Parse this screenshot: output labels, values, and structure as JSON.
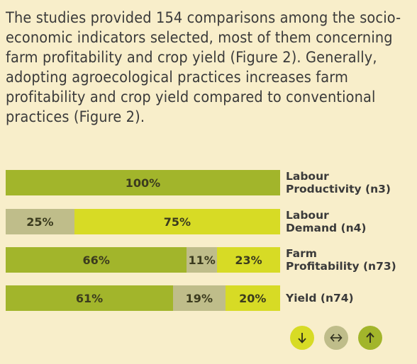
{
  "paragraph": "The studies provided 154 comparisons among the socio-economic indicators selected, most of them concerning farm profitability and crop yield (Figure 2). Generally, adopting agroecological practices increases farm profitability and crop yield compared to conventional practices (Figure 2).",
  "chart_data": {
    "type": "bar",
    "orientation": "horizontal",
    "stacked": true,
    "normalized_percent": true,
    "categories": [
      "Labour Productivity (n3)",
      "Labour Demand (n4)",
      "Farm Profitability (n73)",
      "Yield (n74)"
    ],
    "category_labels": [
      [
        "Labour",
        "Productivity (n3)"
      ],
      [
        "Labour",
        "Demand (n4)"
      ],
      [
        "Farm",
        "Profitability (n73)"
      ],
      [
        "Yield (n74)"
      ]
    ],
    "rows": [
      {
        "segments": [
          {
            "key": "positive",
            "value": 100,
            "label": "100%"
          }
        ]
      },
      {
        "segments": [
          {
            "key": "neutral",
            "value": 25,
            "label": "25%"
          },
          {
            "key": "negative",
            "value": 75,
            "label": "75%"
          }
        ]
      },
      {
        "segments": [
          {
            "key": "positive",
            "value": 66,
            "label": "66%"
          },
          {
            "key": "neutral",
            "value": 11,
            "label": "11%"
          },
          {
            "key": "negative",
            "value": 23,
            "label": "23%"
          }
        ]
      },
      {
        "segments": [
          {
            "key": "positive",
            "value": 61,
            "label": "61%"
          },
          {
            "key": "neutral",
            "value": 19,
            "label": "19%"
          },
          {
            "key": "negative",
            "value": 20,
            "label": "20%"
          }
        ]
      }
    ],
    "legend": [
      {
        "key": "negative",
        "icon": "down-arrow-icon"
      },
      {
        "key": "neutral",
        "icon": "left-right-arrow-icon"
      },
      {
        "key": "positive",
        "icon": "up-arrow-icon"
      }
    ],
    "legend_placement": "bottom-right",
    "colors": {
      "positive": "#a2b52b",
      "neutral": "#bfbd8a",
      "negative": "#d7db25"
    },
    "title": "",
    "xlabel": "",
    "ylabel": ""
  }
}
